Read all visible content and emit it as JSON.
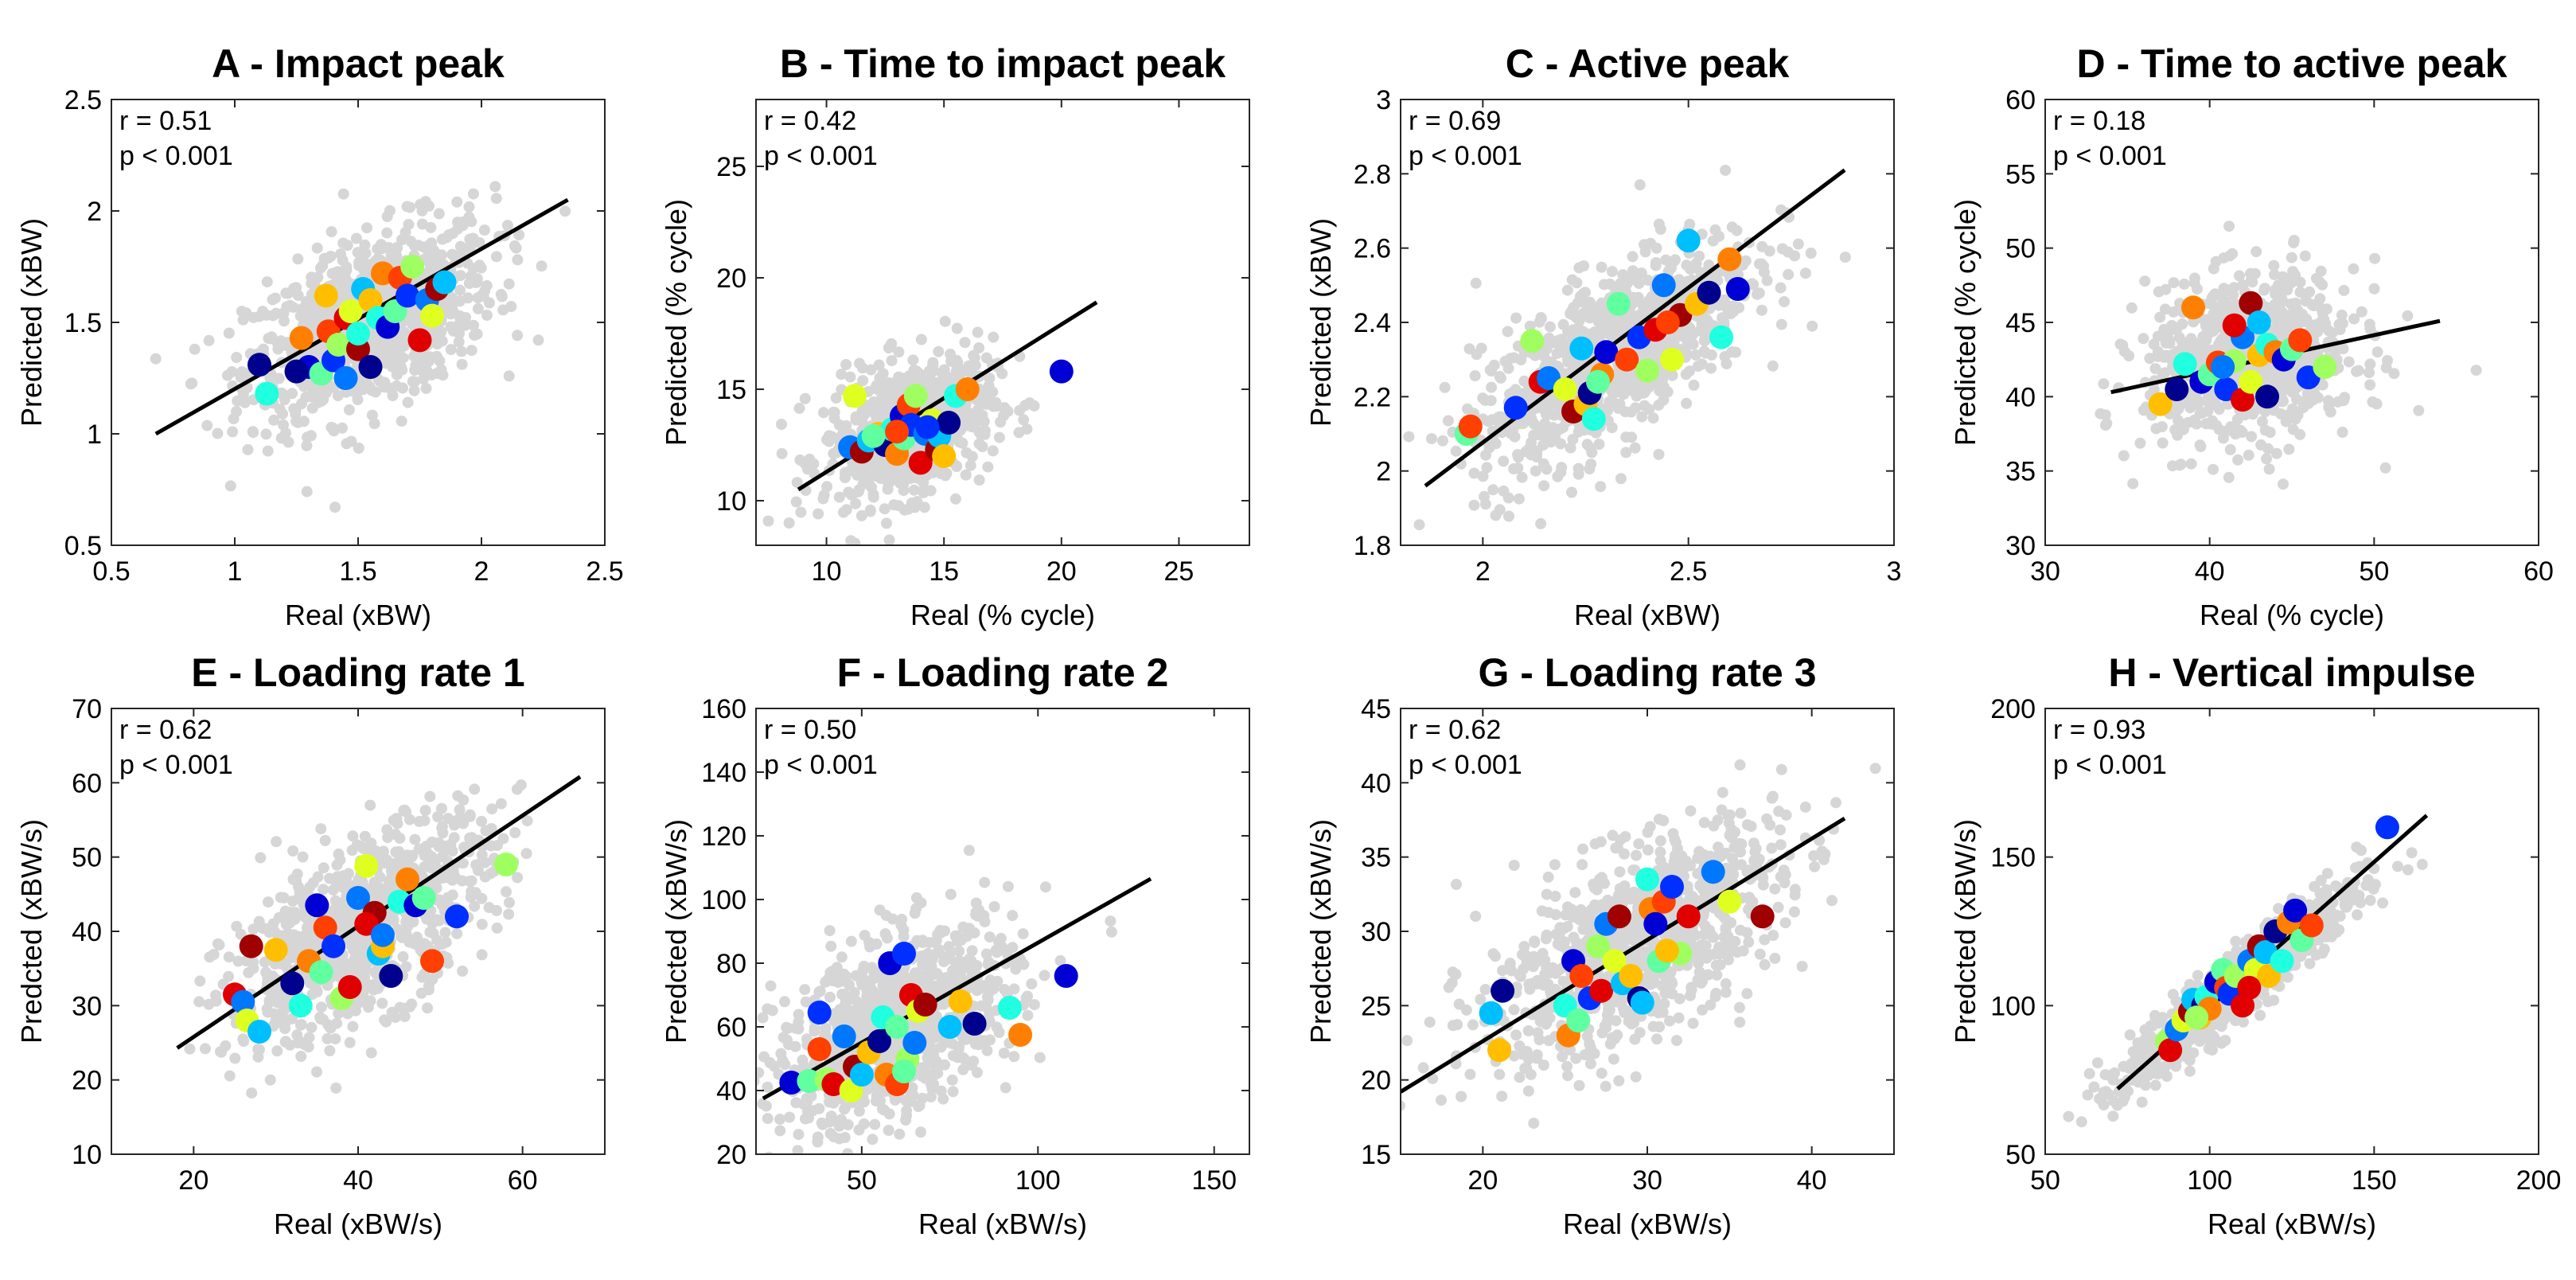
{
  "figure_title": "",
  "chart_data": [
    {
      "type": "scatter",
      "title": "A  - Impact peak",
      "xlabel": "Real (xBW)",
      "ylabel": "Predicted (xBW)",
      "xlim": [
        0.5,
        2.5
      ],
      "ylim": [
        0.5,
        2.5
      ],
      "xticks": [
        0.5,
        1,
        1.5,
        2,
        2.5
      ],
      "yticks": [
        0.5,
        1,
        1.5,
        2,
        2.5
      ],
      "xtick_labels": [
        "0.5",
        "1",
        "1.5",
        "2",
        "2.5"
      ],
      "ytick_labels": [
        "0.5",
        "1",
        "1.5",
        "2",
        "2.5"
      ],
      "r_text": "r = 0.51",
      "p_text": "p < 0.001",
      "fit_line": [
        [
          0.68,
          1.0
        ],
        [
          2.35,
          2.05
        ]
      ],
      "background": {
        "center": [
          1.55,
          1.5
        ],
        "sd": [
          0.25,
          0.22
        ],
        "rho": 0.5,
        "n": 950
      },
      "highlighted_points": [
        [
          1.1,
          1.31
        ],
        [
          1.13,
          1.18
        ],
        [
          1.27,
          1.43
        ],
        [
          1.3,
          1.3
        ],
        [
          1.35,
          1.27
        ],
        [
          1.38,
          1.46
        ],
        [
          1.4,
          1.33
        ],
        [
          1.42,
          1.4
        ],
        [
          1.45,
          1.52
        ],
        [
          1.45,
          1.25
        ],
        [
          1.47,
          1.55
        ],
        [
          1.5,
          1.38
        ],
        [
          1.52,
          1.65
        ],
        [
          1.55,
          1.6
        ],
        [
          1.55,
          1.3
        ],
        [
          1.58,
          1.52
        ],
        [
          1.6,
          1.72
        ],
        [
          1.62,
          1.48
        ],
        [
          1.65,
          1.55
        ],
        [
          1.67,
          1.7
        ],
        [
          1.7,
          1.62
        ],
        [
          1.72,
          1.75
        ],
        [
          1.75,
          1.42
        ],
        [
          1.78,
          1.6
        ],
        [
          1.8,
          1.53
        ],
        [
          1.82,
          1.65
        ],
        [
          1.85,
          1.68
        ],
        [
          1.37,
          1.62
        ],
        [
          1.25,
          1.28
        ],
        [
          1.5,
          1.45
        ]
      ]
    },
    {
      "type": "scatter",
      "title": "B  - Time to impact peak",
      "xlabel": "Real (% cycle)",
      "ylabel": "Predicted (% cycle)",
      "xlim": [
        7,
        28
      ],
      "ylim": [
        8,
        28
      ],
      "xticks": [
        10,
        15,
        20,
        25
      ],
      "yticks": [
        10,
        15,
        20,
        25
      ],
      "xtick_labels": [
        "10",
        "15",
        "20",
        "25"
      ],
      "ytick_labels": [
        "10",
        "15",
        "20",
        "25"
      ],
      "r_text": "r = 0.42",
      "p_text": "p < 0.001",
      "fit_line": [
        [
          8.8,
          10.5
        ],
        [
          21.5,
          18.9
        ]
      ],
      "background": {
        "center": [
          13.5,
          13.2
        ],
        "sd": [
          1.8,
          1.6
        ],
        "rho": 0.35,
        "n": 700
      },
      "highlighted_points": [
        [
          11,
          12.4
        ],
        [
          11.2,
          14.7
        ],
        [
          11.5,
          12.2
        ],
        [
          11.8,
          12.7
        ],
        [
          12.2,
          13
        ],
        [
          12.5,
          12.5
        ],
        [
          12.8,
          13.2
        ],
        [
          13,
          12.1
        ],
        [
          13.2,
          13.8
        ],
        [
          13.3,
          12.8
        ],
        [
          13.5,
          14.3
        ],
        [
          13.6,
          13.4
        ],
        [
          13.8,
          14.7
        ],
        [
          14,
          11.7
        ],
        [
          14.2,
          13
        ],
        [
          14.5,
          13.6
        ],
        [
          14.7,
          12.3
        ],
        [
          14.8,
          12.9
        ],
        [
          15,
          12
        ],
        [
          15.2,
          13.5
        ],
        [
          15.5,
          14.7
        ],
        [
          16,
          15
        ],
        [
          20,
          15.8
        ],
        [
          12,
          12.9
        ],
        [
          13,
          13.1
        ],
        [
          14.3,
          13.3
        ]
      ]
    },
    {
      "type": "scatter",
      "title": "C  - Active peak",
      "xlabel": "Real (xBW)",
      "ylabel": "Predicted (xBW)",
      "xlim": [
        1.8,
        3.0
      ],
      "ylim": [
        1.8,
        3.0
      ],
      "xticks": [
        2,
        2.5,
        3
      ],
      "yticks": [
        1.8,
        2,
        2.2,
        2.4,
        2.6,
        2.8,
        3
      ],
      "xtick_labels": [
        "2",
        "2.5",
        "3"
      ],
      "ytick_labels": [
        "1.8",
        "2",
        "2.2",
        "2.4",
        "2.6",
        "2.8",
        "3"
      ],
      "r_text": "r = 0.69",
      "p_text": "p < 0.001",
      "fit_line": [
        [
          1.86,
          1.96
        ],
        [
          2.88,
          2.81
        ]
      ],
      "background": {
        "center": [
          2.32,
          2.32
        ],
        "sd": [
          0.17,
          0.16
        ],
        "rho": 0.7,
        "n": 950
      },
      "highlighted_points": [
        [
          1.96,
          2.1
        ],
        [
          1.97,
          2.12
        ],
        [
          2.08,
          2.17
        ],
        [
          2.12,
          2.35
        ],
        [
          2.14,
          2.24
        ],
        [
          2.16,
          2.25
        ],
        [
          2.2,
          2.22
        ],
        [
          2.22,
          2.16
        ],
        [
          2.24,
          2.33
        ],
        [
          2.25,
          2.18
        ],
        [
          2.26,
          2.21
        ],
        [
          2.27,
          2.14
        ],
        [
          2.29,
          2.26
        ],
        [
          2.3,
          2.32
        ],
        [
          2.33,
          2.45
        ],
        [
          2.35,
          2.3
        ],
        [
          2.38,
          2.36
        ],
        [
          2.4,
          2.27
        ],
        [
          2.42,
          2.38
        ],
        [
          2.44,
          2.5
        ],
        [
          2.46,
          2.3
        ],
        [
          2.48,
          2.42
        ],
        [
          2.5,
          2.62
        ],
        [
          2.52,
          2.45
        ],
        [
          2.55,
          2.48
        ],
        [
          2.58,
          2.36
        ],
        [
          2.6,
          2.57
        ],
        [
          2.62,
          2.49
        ],
        [
          2.28,
          2.24
        ],
        [
          2.45,
          2.4
        ]
      ]
    },
    {
      "type": "scatter",
      "title": "D  - Time to active peak",
      "xlabel": "Real (% cycle)",
      "ylabel": "Predicted (% cycle)",
      "xlim": [
        30,
        60
      ],
      "ylim": [
        30,
        60
      ],
      "xticks": [
        30,
        40,
        50,
        60
      ],
      "yticks": [
        30,
        35,
        40,
        45,
        50,
        55,
        60
      ],
      "xtick_labels": [
        "30",
        "40",
        "50",
        "60"
      ],
      "ytick_labels": [
        "30",
        "35",
        "40",
        "45",
        "50",
        "55",
        "60"
      ],
      "r_text": "r = 0.18",
      "p_text": "p < 0.001",
      "fit_line": [
        [
          34,
          40.3
        ],
        [
          54,
          45.1
        ]
      ],
      "background": {
        "center": [
          42.5,
          42.5
        ],
        "sd": [
          3.2,
          2.8
        ],
        "rho": 0.15,
        "n": 800
      },
      "highlighted_points": [
        [
          37,
          39.5
        ],
        [
          38,
          40.5
        ],
        [
          38.5,
          42.2
        ],
        [
          39,
          46
        ],
        [
          39.5,
          41
        ],
        [
          40,
          41.5
        ],
        [
          40.5,
          42.3
        ],
        [
          41,
          40.5
        ],
        [
          41.5,
          42.4
        ],
        [
          42,
          39.8
        ],
        [
          42,
          44
        ],
        [
          42.5,
          41
        ],
        [
          42.5,
          46.3
        ],
        [
          43,
          45
        ],
        [
          43,
          42.8
        ],
        [
          43.5,
          40
        ],
        [
          43.5,
          43.5
        ],
        [
          44,
          43
        ],
        [
          44.5,
          42.5
        ],
        [
          45,
          43.2
        ],
        [
          45.5,
          43.8
        ],
        [
          46,
          41.3
        ],
        [
          47,
          42
        ],
        [
          41.5,
          44.8
        ],
        [
          40.8,
          42
        ]
      ]
    },
    {
      "type": "scatter",
      "title": "E  - Loading rate 1",
      "xlabel": "Real (xBW/s)",
      "ylabel": "Predcted (xBW/s)",
      "xlim": [
        10,
        70
      ],
      "ylim": [
        10,
        70
      ],
      "xticks": [
        20,
        40,
        60
      ],
      "yticks": [
        10,
        20,
        30,
        40,
        50,
        60,
        70
      ],
      "xtick_labels": [
        "20",
        "40",
        "60"
      ],
      "ytick_labels": [
        "10",
        "20",
        "30",
        "40",
        "50",
        "60",
        "70"
      ],
      "r_text": "r = 0.62",
      "p_text": "p < 0.001",
      "fit_line": [
        [
          18,
          24.3
        ],
        [
          67,
          60.8
        ]
      ],
      "background": {
        "center": [
          40,
          40
        ],
        "sd": [
          8,
          7.5
        ],
        "rho": 0.62,
        "n": 900
      },
      "highlighted_points": [
        [
          25,
          31.5
        ],
        [
          26,
          30.5
        ],
        [
          26.5,
          28
        ],
        [
          27,
          38
        ],
        [
          28,
          26.5
        ],
        [
          30,
          37.5
        ],
        [
          32,
          33
        ],
        [
          33,
          30
        ],
        [
          34,
          36
        ],
        [
          35,
          43.5
        ],
        [
          35.5,
          34.5
        ],
        [
          36,
          40.5
        ],
        [
          37,
          38
        ],
        [
          38,
          31
        ],
        [
          39,
          32.5
        ],
        [
          40,
          44.5
        ],
        [
          41,
          48.8
        ],
        [
          42,
          42.5
        ],
        [
          42.5,
          37
        ],
        [
          43,
          38
        ],
        [
          44,
          34
        ],
        [
          45,
          44
        ],
        [
          46,
          47
        ],
        [
          47,
          43.5
        ],
        [
          48,
          44.5
        ],
        [
          49,
          36
        ],
        [
          52,
          42
        ],
        [
          58,
          49
        ],
        [
          41,
          41
        ],
        [
          43,
          39.5
        ]
      ]
    },
    {
      "type": "scatter",
      "title": "F  - Loading rate 2",
      "xlabel": "Real (xBW/s)",
      "ylabel": "Predcted (xBW/s)",
      "xlim": [
        20,
        160
      ],
      "ylim": [
        20,
        160
      ],
      "xticks": [
        50,
        100,
        150
      ],
      "yticks": [
        20,
        40,
        60,
        80,
        100,
        120,
        140,
        160
      ],
      "xtick_labels": [
        "50",
        "100",
        "150"
      ],
      "ytick_labels": [
        "20",
        "40",
        "60",
        "80",
        "100",
        "120",
        "140",
        "160"
      ],
      "r_text": "r = 0.50",
      "p_text": "p < 0.001",
      "fit_line": [
        [
          22,
          37.5
        ],
        [
          132,
          106.5
        ]
      ],
      "background": {
        "center": [
          60,
          60
        ],
        "sd": [
          17,
          16
        ],
        "rho": 0.5,
        "n": 950
      },
      "highlighted_points": [
        [
          30,
          42.5
        ],
        [
          35,
          43
        ],
        [
          38,
          53
        ],
        [
          38,
          64.5
        ],
        [
          40,
          43.5
        ],
        [
          42,
          42
        ],
        [
          45,
          57
        ],
        [
          47,
          40
        ],
        [
          48,
          47.5
        ],
        [
          50,
          45
        ],
        [
          52,
          52
        ],
        [
          55,
          55.5
        ],
        [
          56,
          63
        ],
        [
          57,
          45
        ],
        [
          58,
          80
        ],
        [
          60,
          60
        ],
        [
          60,
          42
        ],
        [
          62,
          83
        ],
        [
          63,
          50
        ],
        [
          64,
          70
        ],
        [
          65,
          55
        ],
        [
          66,
          65
        ],
        [
          68,
          67
        ],
        [
          75,
          60
        ],
        [
          78,
          68
        ],
        [
          82,
          61
        ],
        [
          92,
          66
        ],
        [
          95,
          57.5
        ],
        [
          108,
          76
        ],
        [
          62,
          46
        ]
      ]
    },
    {
      "type": "scatter",
      "title": "G  - Loading rate 3",
      "xlabel": "Real (xBW/s)",
      "ylabel": "Predcted (xBW/s)",
      "xlim": [
        15,
        45
      ],
      "ylim": [
        15,
        45
      ],
      "xticks": [
        20,
        30,
        40
      ],
      "yticks": [
        15,
        20,
        25,
        30,
        35,
        40,
        45
      ],
      "xtick_labels": [
        "20",
        "30",
        "40"
      ],
      "ytick_labels": [
        "15",
        "20",
        "25",
        "30",
        "35",
        "40",
        "45"
      ],
      "r_text": "r = 0.62",
      "p_text": "p < 0.001",
      "fit_line": [
        [
          15,
          19.2
        ],
        [
          42,
          37.6
        ]
      ],
      "background": {
        "center": [
          29,
          29
        ],
        "sd": [
          4.5,
          4
        ],
        "rho": 0.62,
        "n": 950
      },
      "highlighted_points": [
        [
          20.5,
          24.5
        ],
        [
          21,
          22
        ],
        [
          21.2,
          26
        ],
        [
          25,
          25
        ],
        [
          25.2,
          23
        ],
        [
          25.5,
          28
        ],
        [
          25.8,
          24
        ],
        [
          26,
          27
        ],
        [
          26.5,
          25.5
        ],
        [
          27,
          29
        ],
        [
          27.2,
          26
        ],
        [
          27.5,
          30.5
        ],
        [
          28,
          28
        ],
        [
          28.3,
          31
        ],
        [
          28.5,
          26.5
        ],
        [
          29,
          27
        ],
        [
          29.5,
          25.5
        ],
        [
          30,
          33.5
        ],
        [
          30.2,
          31.5
        ],
        [
          30.5,
          30.5
        ],
        [
          30.7,
          28
        ],
        [
          31,
          32
        ],
        [
          31.5,
          33
        ],
        [
          32,
          28.5
        ],
        [
          32.5,
          31
        ],
        [
          34,
          34
        ],
        [
          35,
          32
        ],
        [
          37,
          31
        ],
        [
          29.7,
          25.2
        ],
        [
          31.2,
          28.7
        ]
      ]
    },
    {
      "type": "scatter",
      "title": "H  - Vertical impulse",
      "xlabel": "Real (xBW/s)",
      "ylabel": "Predcted (xBW/s)",
      "xlim": [
        50,
        200
      ],
      "ylim": [
        50,
        200
      ],
      "xticks": [
        50,
        100,
        150,
        200
      ],
      "yticks": [
        50,
        100,
        150,
        200
      ],
      "xtick_labels": [
        "50",
        "100",
        "150",
        "200"
      ],
      "ytick_labels": [
        "50",
        "100",
        "150",
        "200"
      ],
      "r_text": "r = 0.93",
      "p_text": "p < 0.001",
      "fit_line": [
        [
          72,
          72
        ],
        [
          166,
          164
        ]
      ],
      "background": {
        "center": [
          110,
          108
        ],
        "sd": [
          18,
          17
        ],
        "rho": 0.93,
        "n": 800
      },
      "highlighted_points": [
        [
          87,
          88
        ],
        [
          88,
          85
        ],
        [
          90,
          92
        ],
        [
          92,
          95
        ],
        [
          94,
          98
        ],
        [
          95,
          102
        ],
        [
          97,
          96
        ],
        [
          98,
          100
        ],
        [
          99,
          103
        ],
        [
          100,
          99
        ],
        [
          102,
          108
        ],
        [
          104,
          112
        ],
        [
          105,
          106
        ],
        [
          106,
          104
        ],
        [
          108,
          110
        ],
        [
          110,
          100
        ],
        [
          112,
          115
        ],
        [
          114,
          112
        ],
        [
          115,
          120
        ],
        [
          117,
          118
        ],
        [
          118,
          110
        ],
        [
          120,
          125
        ],
        [
          122,
          115
        ],
        [
          124,
          128
        ],
        [
          126,
          132
        ],
        [
          128,
          122
        ],
        [
          131,
          127
        ],
        [
          154,
          160
        ],
        [
          96,
          96
        ],
        [
          112,
          106
        ]
      ]
    }
  ]
}
